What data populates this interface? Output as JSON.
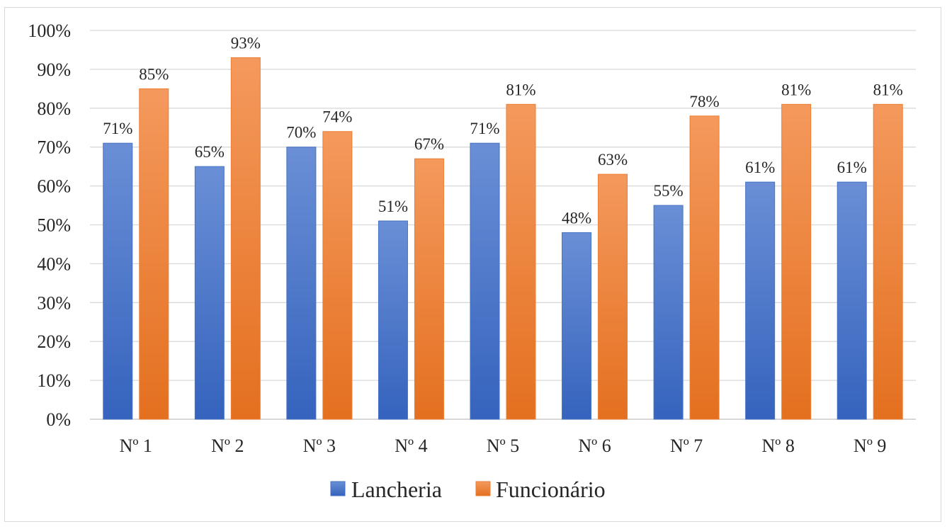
{
  "chart_data": {
    "type": "bar",
    "title": "",
    "xlabel": "",
    "ylabel": "",
    "categories": [
      "Nº 1",
      "Nº 2",
      "Nº 3",
      "Nº 4",
      "Nº 5",
      "Nº 6",
      "Nº 7",
      "Nº 8",
      "Nº 9"
    ],
    "series": [
      {
        "name": "Lancheria",
        "color": "#4472c4",
        "values": [
          71,
          65,
          70,
          51,
          71,
          48,
          55,
          61,
          61
        ],
        "labels": [
          "71%",
          "65%",
          "70%",
          "51%",
          "71%",
          "48%",
          "55%",
          "61%",
          "61%"
        ]
      },
      {
        "name": "Funcionário",
        "color": "#ed7d31",
        "values": [
          85,
          93,
          74,
          67,
          81,
          63,
          78,
          81,
          81
        ],
        "labels": [
          "85%",
          "93%",
          "74%",
          "67%",
          "81%",
          "63%",
          "78%",
          "81%",
          "81%"
        ]
      }
    ],
    "y_ticks": [
      "0%",
      "10%",
      "20%",
      "30%",
      "40%",
      "50%",
      "60%",
      "70%",
      "80%",
      "90%",
      "100%"
    ],
    "ylim": [
      0,
      100
    ],
    "grid": true,
    "legend_position": "bottom"
  }
}
